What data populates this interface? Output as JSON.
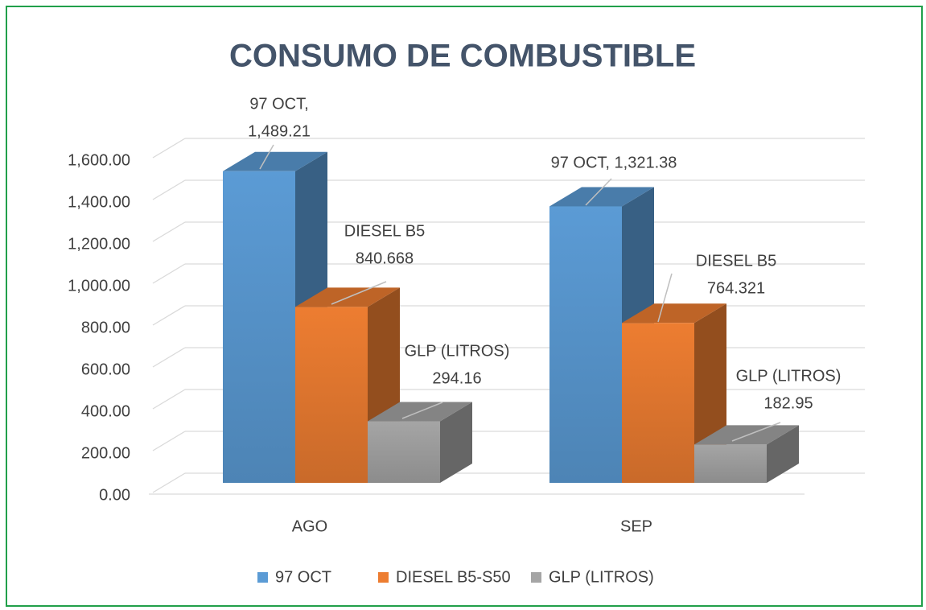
{
  "chart_data": {
    "type": "bar3d",
    "title": "CONSUMO DE COMBUSTIBLE",
    "categories": [
      "AGO",
      "SEP"
    ],
    "series": [
      {
        "name": "97 OCT",
        "color": "#5b9bd5",
        "values": [
          1489.21,
          1321.38
        ],
        "value_labels": [
          [
            "97 OCT,",
            "1,489.21"
          ],
          [
            "97 OCT,  1,321.38"
          ]
        ]
      },
      {
        "name": "DIESEL B5-S50",
        "color": "#ed7d31",
        "values": [
          840.668,
          764.321
        ],
        "value_labels": [
          [
            "DIESEL B5",
            "840.668"
          ],
          [
            "DIESEL B5",
            "764.321"
          ]
        ]
      },
      {
        "name": "GLP (LITROS)",
        "color": "#a5a5a5",
        "values": [
          294.16,
          182.95
        ],
        "value_labels": [
          [
            "GLP (LITROS)",
            "294.16"
          ],
          [
            "GLP (LITROS)",
            "182.95"
          ]
        ]
      }
    ],
    "ylim": [
      0,
      1600
    ],
    "yticks": [
      {
        "value": 0,
        "label": "0.00"
      },
      {
        "value": 200,
        "label": "200.00"
      },
      {
        "value": 400,
        "label": "400.00"
      },
      {
        "value": 600,
        "label": "600.00"
      },
      {
        "value": 800,
        "label": "800.00"
      },
      {
        "value": 1000,
        "label": "1,000.00"
      },
      {
        "value": 1200,
        "label": "1,200.00"
      },
      {
        "value": 1400,
        "label": "1,400.00"
      },
      {
        "value": 1600,
        "label": "1,600.00"
      }
    ],
    "grid": true,
    "legend": "bottom"
  }
}
